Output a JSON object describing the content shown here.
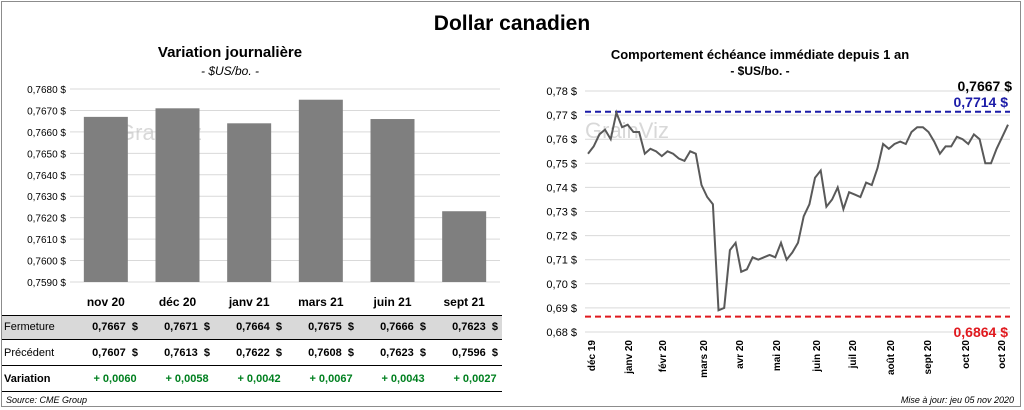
{
  "title": "Dollar canadien",
  "left": {
    "title": "Variation  journalière",
    "unit": "- $US/bo. -",
    "table": {
      "rows": [
        {
          "label": "Fermeture",
          "values": [
            "0,7667  $",
            "0,7671  $",
            "0,7664  $",
            "0,7675  $",
            "0,7666  $",
            "0,7623  $"
          ]
        },
        {
          "label": "Précédent",
          "values": [
            "0,7607  $",
            "0,7613  $",
            "0,7622  $",
            "0,7608  $",
            "0,7623  $",
            "0,7596  $"
          ]
        },
        {
          "label": "Variation",
          "values": [
            "+ 0,0060",
            "+ 0,0058",
            "+ 0,0042",
            "+ 0,0067",
            "+ 0,0043",
            "+ 0,0027"
          ]
        }
      ]
    }
  },
  "right": {
    "title": "Comportement échéance immédiate depuis 1 an",
    "unit": "- $US/bo. -"
  },
  "source": "Source: CME Group",
  "update": "Mise à jour: jeu 05 nov 2020",
  "colors": {
    "bar": "#7f7f7f",
    "line": "#595959",
    "high": "#1c1ca8",
    "low": "#e0191e",
    "positive": "#00801f"
  },
  "chart_data": [
    {
      "type": "bar",
      "categories": [
        "nov 20",
        "déc 20",
        "janv 21",
        "mars 21",
        "juin 21",
        "sept 21"
      ],
      "values": [
        0.7667,
        0.7671,
        0.7664,
        0.7675,
        0.7666,
        0.7623
      ],
      "ylim": [
        0.759,
        0.768
      ],
      "yticks": [
        "0,7590 $",
        "0,7600 $",
        "0,7610 $",
        "0,7620 $",
        "0,7630 $",
        "0,7640 $",
        "0,7650 $",
        "0,7660 $",
        "0,7670 $",
        "0,7680 $"
      ],
      "grid": true
    },
    {
      "type": "line",
      "ylim": [
        0.68,
        0.78
      ],
      "yticks": [
        "0,68 $",
        "0,69 $",
        "0,70 $",
        "0,71 $",
        "0,72 $",
        "0,73 $",
        "0,74 $",
        "0,75 $",
        "0,76 $",
        "0,77 $",
        "0,78 $"
      ],
      "xticks": [
        "déc 19",
        "janv 20",
        "févr 20",
        "mars 20",
        "avr 20",
        "mai 20",
        "juin 20",
        "juil 20",
        "août 20",
        "sept 20",
        "oct 20",
        "oct 20"
      ],
      "values": [
        0.754,
        0.757,
        0.762,
        0.764,
        0.76,
        0.771,
        0.765,
        0.766,
        0.763,
        0.763,
        0.754,
        0.756,
        0.755,
        0.753,
        0.755,
        0.754,
        0.752,
        0.751,
        0.755,
        0.754,
        0.741,
        0.736,
        0.733,
        0.689,
        0.69,
        0.714,
        0.717,
        0.705,
        0.706,
        0.711,
        0.71,
        0.711,
        0.712,
        0.711,
        0.717,
        0.71,
        0.713,
        0.717,
        0.728,
        0.733,
        0.744,
        0.747,
        0.732,
        0.735,
        0.74,
        0.731,
        0.738,
        0.737,
        0.736,
        0.742,
        0.741,
        0.748,
        0.758,
        0.756,
        0.758,
        0.759,
        0.758,
        0.763,
        0.765,
        0.765,
        0.763,
        0.759,
        0.754,
        0.757,
        0.757,
        0.761,
        0.76,
        0.758,
        0.762,
        0.76,
        0.75,
        0.75,
        0.756,
        0.761,
        0.766
      ],
      "last": {
        "value": 0.7667,
        "label": "0,7667 $"
      },
      "high": {
        "value": 0.7714,
        "label": "0,7714 $"
      },
      "low": {
        "value": 0.6864,
        "label": "0,6864 $"
      },
      "grid": true
    }
  ]
}
